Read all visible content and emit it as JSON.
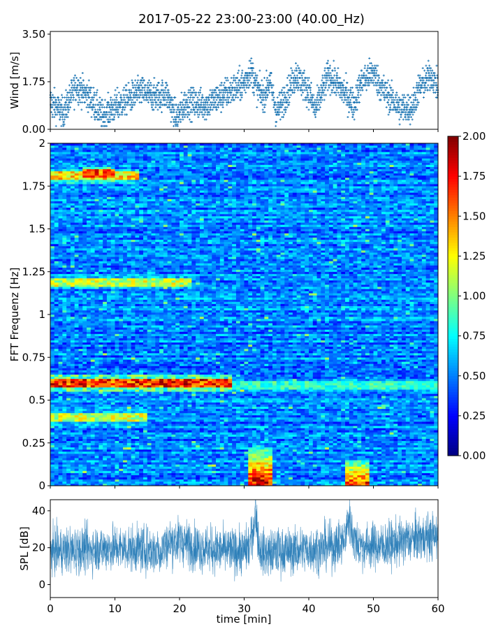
{
  "title": "2017-05-22 23:00-23:00 (40.00_Hz)",
  "colors": {
    "series": "#1f77b4",
    "axis": "#000000",
    "background": "#ffffff"
  },
  "chart_data": [
    {
      "type": "scatter",
      "panel": "wind",
      "ylabel": "Wind [m/s]",
      "xlim": [
        0,
        60
      ],
      "ylim": [
        0,
        3.6
      ],
      "yticks": [
        "0.00",
        "1.75",
        "3.50"
      ],
      "series": [
        {
          "marker": "+",
          "x_range": [
            0,
            60
          ],
          "points_per_min": 45,
          "baseline_profile": [
            [
              0,
              1.0
            ],
            [
              2,
              0.6
            ],
            [
              4,
              1.6
            ],
            [
              6,
              1.2
            ],
            [
              8,
              0.5
            ],
            [
              10,
              0.8
            ],
            [
              12,
              1.1
            ],
            [
              14,
              1.4
            ],
            [
              16,
              1.2
            ],
            [
              18,
              1.3
            ],
            [
              19.5,
              0.4
            ],
            [
              21,
              1.0
            ],
            [
              24,
              0.9
            ],
            [
              27,
              1.3
            ],
            [
              30,
              1.7
            ],
            [
              31,
              2.2
            ],
            [
              32,
              1.5
            ],
            [
              33,
              1.2
            ],
            [
              34,
              1.8
            ],
            [
              35,
              0.6
            ],
            [
              37,
              1.5
            ],
            [
              38,
              2.0
            ],
            [
              40,
              1.4
            ],
            [
              41,
              0.7
            ],
            [
              43,
              2.0
            ],
            [
              45,
              1.5
            ],
            [
              46,
              1.2
            ],
            [
              47,
              0.9
            ],
            [
              48,
              1.7
            ],
            [
              50,
              2.1
            ],
            [
              51,
              1.6
            ],
            [
              52,
              1.3
            ],
            [
              54,
              0.8
            ],
            [
              56,
              0.8
            ],
            [
              57,
              1.5
            ],
            [
              59,
              2.0
            ],
            [
              60,
              1.5
            ]
          ]
        }
      ]
    },
    {
      "type": "heatmap",
      "panel": "spectrogram",
      "ylabel": "FFT Frequenz [Hz]",
      "xlim": [
        0,
        60
      ],
      "ylim": [
        0,
        2
      ],
      "yticks": [
        "0",
        "0.25",
        "0.5",
        "0.75",
        "1",
        "1.25",
        "1.5",
        "1.75",
        "2"
      ],
      "colormap": "jet",
      "clim": [
        0,
        2
      ],
      "colorbar_ticks": [
        "0.00",
        "0.25",
        "0.50",
        "0.75",
        "1.00",
        "1.25",
        "1.50",
        "1.75",
        "2.00"
      ],
      "time_bins": 96,
      "freq_bins": 160,
      "features": [
        {
          "freq": 0.6,
          "t_start": 0,
          "t_end": 28,
          "amplitude": 1.9
        },
        {
          "freq": 0.585,
          "t_start": 28,
          "t_end": 60,
          "amplitude": 0.95
        },
        {
          "freq": 0.4,
          "t_start": 0,
          "t_end": 15,
          "amplitude": 1.3
        },
        {
          "freq": 1.19,
          "t_start": 0,
          "t_end": 22,
          "amplitude": 1.3
        },
        {
          "freq": 1.81,
          "t_start": 0,
          "t_end": 14,
          "amplitude": 1.5
        },
        {
          "freq": 1.82,
          "t_start": 5,
          "t_end": 10,
          "amplitude": 1.8
        },
        {
          "freq": 0.04,
          "t_start": 30.5,
          "t_end": 34.5,
          "amplitude": 2.0,
          "fmax": 0.22
        },
        {
          "freq": 0.04,
          "t_start": 45.5,
          "t_end": 49.5,
          "amplitude": 1.9,
          "fmax": 0.15
        }
      ]
    },
    {
      "type": "line",
      "panel": "spl",
      "xlabel": "time [min]",
      "ylabel": "SPL [dB]",
      "xlim": [
        0,
        60
      ],
      "ylim": [
        -7,
        46
      ],
      "xticks": [
        "0",
        "10",
        "20",
        "30",
        "40",
        "50",
        "60"
      ],
      "yticks": [
        "0",
        "20",
        "40"
      ],
      "series": [
        {
          "x_range": [
            0,
            60
          ],
          "mean_profile": [
            [
              0,
              18
            ],
            [
              5,
              19
            ],
            [
              10,
              20
            ],
            [
              15,
              19
            ],
            [
              17,
              18
            ],
            [
              18,
              22
            ],
            [
              20,
              24
            ],
            [
              22,
              21
            ],
            [
              25,
              19
            ],
            [
              28,
              18
            ],
            [
              30,
              18
            ],
            [
              31,
              22
            ],
            [
              31.8,
              40
            ],
            [
              32.3,
              20
            ],
            [
              33,
              17
            ],
            [
              36,
              18
            ],
            [
              40,
              19
            ],
            [
              44,
              21
            ],
            [
              45.5,
              24
            ],
            [
              46.2,
              37
            ],
            [
              47,
              24
            ],
            [
              48,
              21
            ],
            [
              52,
              21
            ],
            [
              55,
              24
            ],
            [
              58,
              26
            ],
            [
              60,
              26
            ]
          ],
          "band_halfwidth": 7
        }
      ]
    }
  ]
}
